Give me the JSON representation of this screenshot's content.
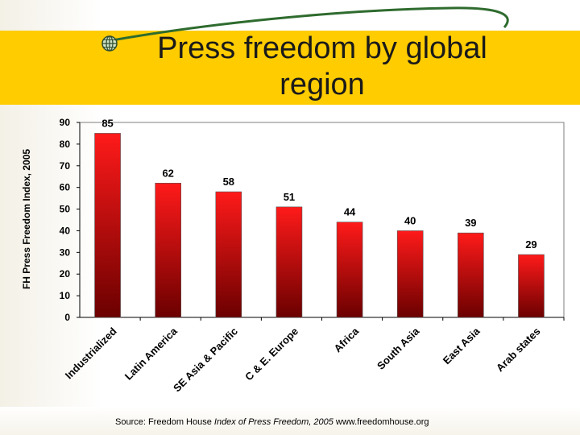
{
  "slide": {
    "title": "Press freedom by global region",
    "source_prefix": "Source: Freedom House ",
    "source_italic": "Index of Press Freedom, 2005",
    "source_suffix": " www.freedomhouse.org",
    "title_band_color": "#ffcc00",
    "swoosh_color": "#2e6b2e",
    "bullet_icon": "globe-icon"
  },
  "chart_data": {
    "type": "bar",
    "title": "",
    "xlabel": "",
    "ylabel": "FH Press Freedom Index, 2005",
    "categories": [
      "Industrialized",
      "Latin America",
      "SE Asia & Pacific",
      "C & E. Europe",
      "Africa",
      "South Asia",
      "East Asia",
      "Arab states"
    ],
    "values": [
      85,
      62,
      58,
      51,
      44,
      40,
      39,
      29
    ],
    "ylim": [
      0,
      90
    ],
    "yticks": [
      0,
      10,
      20,
      30,
      40,
      50,
      60,
      70,
      80,
      90
    ],
    "grid": false,
    "data_labels": true,
    "bar_color_top": "#ff1a1a",
    "bar_color_bottom": "#6b0000"
  }
}
